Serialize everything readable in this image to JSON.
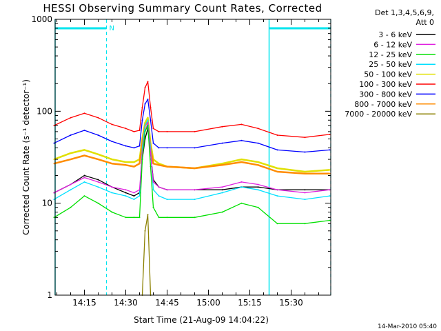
{
  "chart_data": {
    "type": "line",
    "title": "HESSI Observing Summary Count Rates, Corrected",
    "xlabel": "Start Time (21-Aug-09 14:04:22)",
    "ylabel": "Corrected Count Rate (s⁻¹ detector⁻¹)",
    "y_scale": "log",
    "ylim": [
      1,
      1000
    ],
    "y_ticks": [
      "1",
      "10",
      "100",
      "1000"
    ],
    "x_range": [
      "14:04:22",
      "15:44:22"
    ],
    "x_ticks": [
      "14:15",
      "14:30",
      "14:45",
      "15:00",
      "15:15",
      "15:30"
    ],
    "legend_header": [
      "Det 1,3,4,5,6,9,",
      "Att 0"
    ],
    "legend_placement": "right",
    "timestamp": "14-Mar-2010 05:40",
    "night_marker_label": "N",
    "background_color": "#ffffff",
    "marker_color": "#00e5ee",
    "night_intervals": [
      [
        "14:04:22",
        "14:23:00"
      ],
      [
        "15:22:00",
        "15:44:22"
      ]
    ],
    "x": [
      "14:04",
      "14:10",
      "14:15",
      "14:20",
      "14:25",
      "14:30",
      "14:33",
      "14:35",
      "14:36",
      "14:37",
      "14:38",
      "14:39",
      "14:40",
      "14:42",
      "14:45",
      "14:55",
      "15:05",
      "15:12",
      "15:18",
      "15:25",
      "15:35",
      "15:44"
    ],
    "series": [
      {
        "name": "3 - 6 keV",
        "color": "#000000",
        "values": [
          13,
          16,
          20,
          18,
          15,
          13,
          12,
          13,
          30,
          50,
          65,
          35,
          18,
          15,
          14,
          14,
          14,
          15,
          15,
          14,
          14,
          14
        ]
      },
      {
        "name": "6 - 12 keV",
        "color": "#e020e0",
        "values": [
          13,
          16,
          19,
          17,
          15,
          14,
          13,
          14,
          35,
          60,
          75,
          35,
          17,
          15,
          14,
          14,
          15,
          17,
          16,
          14,
          13,
          14
        ]
      },
      {
        "name": "12 - 25 keV",
        "color": "#00e000",
        "values": [
          7,
          9,
          12,
          10,
          8,
          7,
          7,
          7,
          30,
          60,
          70,
          25,
          9,
          7,
          7,
          7,
          8,
          10,
          9,
          6,
          6,
          6.5
        ]
      },
      {
        "name": "25 - 50 keV",
        "color": "#00e0ff",
        "values": [
          11,
          14,
          17,
          15,
          13,
          12,
          11,
          12,
          40,
          70,
          80,
          40,
          14,
          12,
          11,
          11,
          13,
          15,
          14,
          12,
          11,
          12
        ]
      },
      {
        "name": "50 - 100 keV",
        "color": "#e0e000",
        "values": [
          30,
          35,
          38,
          34,
          30,
          28,
          28,
          30,
          50,
          75,
          85,
          45,
          30,
          27,
          25,
          24,
          27,
          30,
          28,
          24,
          22,
          23
        ]
      },
      {
        "name": "100 - 300 keV",
        "color": "#ff0000",
        "values": [
          70,
          85,
          95,
          85,
          72,
          65,
          60,
          62,
          110,
          180,
          210,
          110,
          65,
          60,
          60,
          60,
          68,
          72,
          65,
          55,
          52,
          56
        ]
      },
      {
        "name": "300 - 800 keV",
        "color": "#0000ff",
        "values": [
          45,
          55,
          62,
          55,
          47,
          42,
          40,
          42,
          80,
          120,
          135,
          80,
          45,
          40,
          40,
          40,
          45,
          48,
          45,
          38,
          36,
          38
        ]
      },
      {
        "name": "800 - 7000 keV",
        "color": "#ff8c00",
        "values": [
          27,
          30,
          33,
          30,
          27,
          26,
          25,
          27,
          45,
          70,
          78,
          40,
          27,
          26,
          25,
          24,
          26,
          28,
          26,
          22,
          21,
          21
        ]
      },
      {
        "name": "7000 - 20000 keV",
        "color": "#8b8000",
        "values": [
          null,
          null,
          null,
          null,
          null,
          null,
          null,
          null,
          1,
          5,
          7.5,
          1,
          null,
          null,
          null,
          null,
          null,
          null,
          null,
          null,
          null,
          null
        ]
      }
    ]
  }
}
